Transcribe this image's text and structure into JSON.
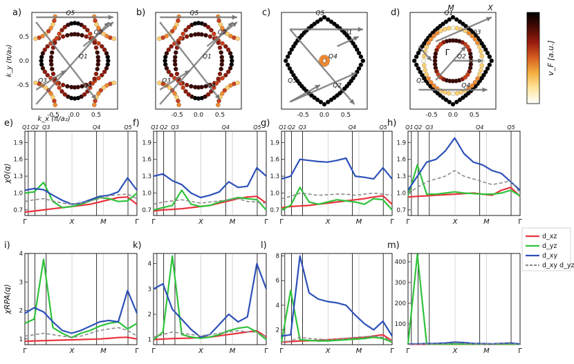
{
  "colorbar": {
    "label": "v_F [a.u.]",
    "colors": [
      "#ffffff",
      "#ffe6a0",
      "#f4b040",
      "#d86020",
      "#9a1d10",
      "#4a0a04",
      "#000000"
    ]
  },
  "fs_panels": [
    {
      "tag": "a)",
      "ylabel": "k_y (π/a₂)",
      "xlabel": "k_x (π/a₂)",
      "xticks": [
        "-0.5",
        "0.0",
        "0.5"
      ],
      "yticks": [
        "0.5",
        "0.0",
        "-0.5"
      ],
      "q_labels": [
        "Q5",
        "Q2",
        "Q1",
        "Q3",
        "Q4"
      ]
    },
    {
      "tag": "b)",
      "xticks": [
        "-0.5",
        "0.0",
        "0.5"
      ],
      "q_labels": [
        "Q5",
        "Q2",
        "Q1",
        "Q3",
        "Q4"
      ]
    },
    {
      "tag": "c)",
      "xticks": [
        "-0.5",
        "0.0",
        "0.5"
      ],
      "q_labels": [
        "Q5",
        "Q1",
        "Q4",
        "Q3",
        "Q2"
      ]
    },
    {
      "tag": "d)",
      "xticks": [
        "-0.5",
        "0.0",
        "0.5"
      ],
      "q_labels": [
        "Q1",
        "Q3",
        "Q2",
        "Q5",
        "Q4"
      ],
      "point_labels": [
        "M",
        "X",
        "Γ"
      ]
    }
  ],
  "chart_data": [
    {
      "type": "line",
      "panel": "e)",
      "ylabel": "χ0(q)",
      "x_ticks": [
        "Γ",
        "X",
        "M",
        "Γ"
      ],
      "top_ticks": [
        "Q1",
        "Q2",
        "Q3",
        "Q4",
        "Q5"
      ],
      "yticks": [
        "0.7",
        "1.0",
        "1.3",
        "1.6",
        "1.9"
      ],
      "ylim": [
        0.6,
        2.1
      ],
      "series": [
        {
          "name": "dxz",
          "color": "#e8323c",
          "values": [
            0.66,
            0.68,
            0.7,
            0.72,
            0.74,
            0.76,
            0.78,
            0.8,
            0.84,
            0.88,
            0.92,
            0.93,
            0.8
          ]
        },
        {
          "name": "dyz",
          "color": "#2ec23a",
          "values": [
            1.0,
            1.02,
            1.19,
            0.85,
            0.74,
            0.76,
            0.8,
            0.86,
            0.92,
            0.9,
            0.85,
            0.86,
            1.0
          ]
        },
        {
          "name": "dxy",
          "color": "#2c50b8",
          "values": [
            1.05,
            1.08,
            1.06,
            0.96,
            0.87,
            0.8,
            0.82,
            0.88,
            0.94,
            0.96,
            1.02,
            1.27,
            1.05
          ]
        },
        {
          "name": "dxydyz",
          "color": "#8a8a8a",
          "values": [
            0.85,
            0.88,
            0.9,
            0.86,
            0.82,
            0.8,
            0.82,
            0.86,
            0.9,
            0.95,
            0.97,
            0.98,
            0.9
          ]
        }
      ]
    },
    {
      "type": "line",
      "panel": "f)",
      "ylabel": "",
      "x_ticks": [
        "Γ",
        "X",
        "M",
        "Γ"
      ],
      "top_ticks": [
        "Q1",
        "Q2",
        "Q3",
        "Q4",
        "Q5"
      ],
      "yticks": [
        "0.7",
        "1.0",
        "1.3",
        "1.6",
        "1.9"
      ],
      "ylim": [
        0.6,
        2.1
      ],
      "series": [
        {
          "name": "dxz",
          "color": "#e8323c",
          "values": [
            0.68,
            0.7,
            0.71,
            0.72,
            0.74,
            0.76,
            0.78,
            0.82,
            0.86,
            0.9,
            0.93,
            0.94,
            0.82
          ]
        },
        {
          "name": "dyz",
          "color": "#2ec23a",
          "values": [
            0.7,
            0.74,
            0.78,
            1.05,
            0.8,
            0.76,
            0.78,
            0.84,
            0.88,
            0.92,
            0.9,
            0.88,
            0.7
          ]
        },
        {
          "name": "dxy",
          "color": "#2c50b8",
          "values": [
            1.3,
            1.34,
            1.22,
            1.15,
            1.0,
            0.92,
            0.96,
            1.02,
            1.2,
            1.1,
            1.12,
            1.45,
            1.3
          ]
        },
        {
          "name": "dxydyz",
          "color": "#8a8a8a",
          "values": [
            0.8,
            0.84,
            0.86,
            0.88,
            0.85,
            0.82,
            0.84,
            0.86,
            0.88,
            0.9,
            0.85,
            0.84,
            0.82
          ]
        }
      ]
    },
    {
      "type": "line",
      "panel": "g)",
      "ylabel": "",
      "x_ticks": [
        "Γ",
        "X",
        "M",
        "Γ"
      ],
      "top_ticks": [
        "Q1",
        "Q2",
        "Q3",
        "Q4",
        "Q5"
      ],
      "yticks": [
        "0.7",
        "1.0",
        "1.3",
        "1.6",
        "1.9"
      ],
      "ylim": [
        0.6,
        2.1
      ],
      "series": [
        {
          "name": "dxz",
          "color": "#e8323c",
          "values": [
            0.74,
            0.76,
            0.77,
            0.78,
            0.8,
            0.82,
            0.84,
            0.86,
            0.88,
            0.9,
            0.93,
            0.95,
            0.8
          ]
        },
        {
          "name": "dyz",
          "color": "#2ec23a",
          "values": [
            0.7,
            0.78,
            1.1,
            0.84,
            0.8,
            0.84,
            0.88,
            0.86,
            0.84,
            0.8,
            0.9,
            0.88,
            0.7
          ]
        },
        {
          "name": "dxy",
          "color": "#2c50b8",
          "values": [
            1.25,
            1.3,
            1.6,
            1.58,
            1.56,
            1.55,
            1.58,
            1.62,
            1.3,
            1.28,
            1.25,
            1.45,
            1.25
          ]
        },
        {
          "name": "dxydyz",
          "color": "#8a8a8a",
          "values": [
            0.9,
            0.94,
            1.0,
            0.98,
            0.96,
            0.97,
            0.98,
            0.98,
            0.96,
            0.98,
            1.0,
            0.98,
            0.96
          ]
        }
      ]
    },
    {
      "type": "line",
      "panel": "h)",
      "ylabel": "",
      "x_ticks": [
        "Γ",
        "X",
        "M",
        "Γ"
      ],
      "top_ticks": [
        "Q1",
        "Q2",
        "Q3",
        "Q4",
        "Q5"
      ],
      "yticks": [
        "0.7",
        "1.0",
        "1.3",
        "1.6",
        "1.9"
      ],
      "ylim": [
        0.6,
        2.1
      ],
      "series": [
        {
          "name": "dxz",
          "color": "#e8323c",
          "values": [
            0.93,
            0.94,
            0.95,
            0.96,
            0.97,
            0.98,
            0.99,
            1.0,
            0.98,
            0.96,
            1.05,
            1.1,
            0.94
          ]
        },
        {
          "name": "dyz",
          "color": "#2ec23a",
          "values": [
            0.95,
            1.5,
            0.98,
            0.98,
            1.0,
            1.02,
            1.0,
            0.99,
            0.98,
            0.98,
            1.0,
            1.05,
            0.95
          ]
        },
        {
          "name": "dxy",
          "color": "#2c50b8",
          "values": [
            1.05,
            1.3,
            1.55,
            1.6,
            1.75,
            1.98,
            1.7,
            1.55,
            1.5,
            1.4,
            1.35,
            1.2,
            1.05
          ]
        },
        {
          "name": "dxydyz",
          "color": "#8a8a8a",
          "values": [
            1.0,
            1.1,
            1.2,
            1.25,
            1.3,
            1.4,
            1.3,
            1.25,
            1.2,
            1.15,
            1.18,
            1.22,
            1.0
          ]
        }
      ]
    },
    {
      "type": "line",
      "panel": "i)",
      "ylabel": "χRPA(q)",
      "x_ticks": [
        "Γ",
        "X",
        "M",
        "Γ"
      ],
      "top_ticks": [],
      "yticks": [
        "1",
        "2",
        "3",
        "4"
      ],
      "ylim": [
        0.8,
        4.0
      ],
      "series": [
        {
          "name": "dxz",
          "color": "#e8323c",
          "values": [
            0.92,
            0.93,
            0.94,
            0.95,
            0.96,
            0.97,
            0.98,
            0.99,
            1.0,
            1.02,
            1.05,
            1.06,
            1.0
          ]
        },
        {
          "name": "dyz",
          "color": "#2ec23a",
          "values": [
            1.55,
            1.7,
            3.8,
            1.4,
            1.2,
            1.05,
            1.2,
            1.3,
            1.45,
            1.55,
            1.6,
            1.35,
            1.55
          ]
        },
        {
          "name": "dxy",
          "color": "#2c50b8",
          "values": [
            1.9,
            2.1,
            1.95,
            1.6,
            1.3,
            1.2,
            1.3,
            1.45,
            1.6,
            1.65,
            1.6,
            2.7,
            1.9
          ]
        },
        {
          "name": "dxydyz",
          "color": "#8a8a8a",
          "values": [
            1.1,
            1.15,
            1.2,
            1.15,
            1.1,
            1.05,
            1.1,
            1.2,
            1.3,
            1.35,
            1.4,
            1.3,
            1.1
          ]
        }
      ]
    },
    {
      "type": "line",
      "panel": "k)",
      "ylabel": "",
      "x_ticks": [
        "Γ",
        "X",
        "M",
        "Γ"
      ],
      "top_ticks": [],
      "yticks": [
        "1",
        "2",
        "3",
        "4"
      ],
      "ylim": [
        0.8,
        4.4
      ],
      "series": [
        {
          "name": "dxz",
          "color": "#e8323c",
          "values": [
            1.0,
            1.02,
            1.04,
            1.05,
            1.06,
            1.08,
            1.1,
            1.15,
            1.2,
            1.25,
            1.3,
            1.35,
            1.1
          ]
        },
        {
          "name": "dyz",
          "color": "#2ec23a",
          "values": [
            1.0,
            1.3,
            4.3,
            1.2,
            1.1,
            1.05,
            1.1,
            1.2,
            1.35,
            1.45,
            1.5,
            1.3,
            1.0
          ]
        },
        {
          "name": "dxy",
          "color": "#2c50b8",
          "values": [
            3.0,
            3.2,
            2.2,
            1.8,
            1.4,
            1.1,
            1.2,
            1.6,
            2.0,
            1.7,
            1.9,
            4.0,
            3.0
          ]
        },
        {
          "name": "dxydyz",
          "color": "#8a8a8a",
          "values": [
            1.1,
            1.2,
            1.3,
            1.25,
            1.2,
            1.15,
            1.2,
            1.25,
            1.3,
            1.35,
            1.3,
            1.3,
            1.1
          ]
        }
      ]
    },
    {
      "type": "line",
      "panel": "l)",
      "ylabel": "",
      "x_ticks": [
        "Γ",
        "X",
        "M",
        "Γ"
      ],
      "top_ticks": [],
      "yticks": [
        "2",
        "4",
        "6",
        "8"
      ],
      "ylim": [
        0.8,
        8.2
      ],
      "series": [
        {
          "name": "dxz",
          "color": "#e8323c",
          "values": [
            1.0,
            1.05,
            1.1,
            1.12,
            1.15,
            1.2,
            1.25,
            1.3,
            1.35,
            1.4,
            1.5,
            1.6,
            1.1
          ]
        },
        {
          "name": "dyz",
          "color": "#2ec23a",
          "values": [
            1.0,
            5.2,
            1.2,
            1.15,
            1.1,
            1.1,
            1.15,
            1.2,
            1.25,
            1.3,
            1.4,
            1.3,
            1.0
          ]
        },
        {
          "name": "dxy",
          "color": "#2c50b8",
          "values": [
            1.5,
            1.6,
            8.0,
            5.0,
            4.5,
            4.3,
            4.2,
            4.0,
            3.2,
            2.5,
            2.0,
            2.7,
            1.5
          ]
        },
        {
          "name": "dxydyz",
          "color": "#8a8a8a",
          "values": [
            1.0,
            1.1,
            1.4,
            1.3,
            1.25,
            1.2,
            1.25,
            1.3,
            1.4,
            1.45,
            1.5,
            1.4,
            1.1
          ]
        }
      ]
    },
    {
      "type": "line",
      "panel": "m)",
      "ylabel": "",
      "x_ticks": [
        "Γ",
        "X",
        "M",
        "Γ"
      ],
      "top_ticks": [],
      "yticks": [
        "100",
        "200",
        "300",
        "400"
      ],
      "ylim": [
        0,
        440
      ],
      "series": [
        {
          "name": "dxz",
          "color": "#e8323c",
          "values": [
            2,
            2,
            2,
            2,
            2,
            2,
            2,
            2,
            2,
            2,
            2,
            2,
            2
          ]
        },
        {
          "name": "dyz",
          "color": "#2ec23a",
          "values": [
            2,
            435,
            3,
            3,
            3,
            3,
            3,
            3,
            3,
            3,
            3,
            3,
            2
          ]
        },
        {
          "name": "dxy",
          "color": "#2c50b8",
          "values": [
            3,
            4,
            5,
            6,
            8,
            12,
            10,
            6,
            5,
            4,
            6,
            8,
            3
          ]
        },
        {
          "name": "dxydyz",
          "color": "#8a8a8a",
          "values": [
            2,
            3,
            4,
            4,
            5,
            8,
            6,
            4,
            4,
            4,
            5,
            5,
            2
          ]
        }
      ]
    }
  ],
  "legend": {
    "entries": [
      {
        "label": "d_xz",
        "color": "#e8323c",
        "dashed": false
      },
      {
        "label": "d_yz",
        "color": "#2ec23a",
        "dashed": false
      },
      {
        "label": "d_xy",
        "color": "#2c50b8",
        "dashed": false
      },
      {
        "label": "d_xy d_yz",
        "color": "#8a8a8a",
        "dashed": true
      }
    ]
  },
  "line_panel_tags": [
    "e)",
    "f)",
    "g)",
    "h)",
    "i)",
    "k)",
    "l)",
    "m)"
  ]
}
